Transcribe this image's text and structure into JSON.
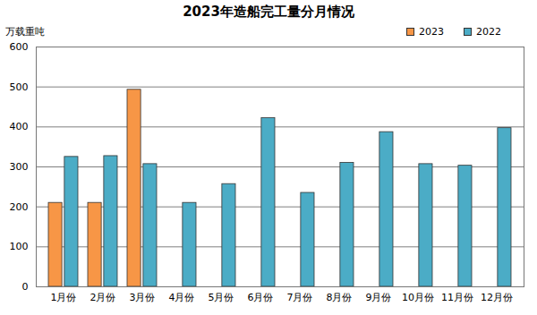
{
  "chart_data": {
    "type": "bar",
    "title": "2023年造船完工量分月情况",
    "y_label": "万载重吨",
    "categories": [
      "1月份",
      "2月份",
      "3月份",
      "4月份",
      "5月份",
      "6月份",
      "7月份",
      "8月份",
      "9月份",
      "10月份",
      "11月份",
      "12月份"
    ],
    "series": [
      {
        "name": "2023",
        "color": "#F79646",
        "values": [
          210,
          210,
          493,
          null,
          null,
          null,
          null,
          null,
          null,
          null,
          null,
          null
        ]
      },
      {
        "name": "2022",
        "color": "#4BACC6",
        "values": [
          325,
          327,
          307,
          210,
          257,
          422,
          235,
          310,
          387,
          307,
          303,
          397
        ]
      }
    ],
    "ylim": [
      0,
      600
    ],
    "yticks": [
      0,
      100,
      200,
      300,
      400,
      500,
      600
    ],
    "grid": true,
    "legend": "top-right"
  }
}
